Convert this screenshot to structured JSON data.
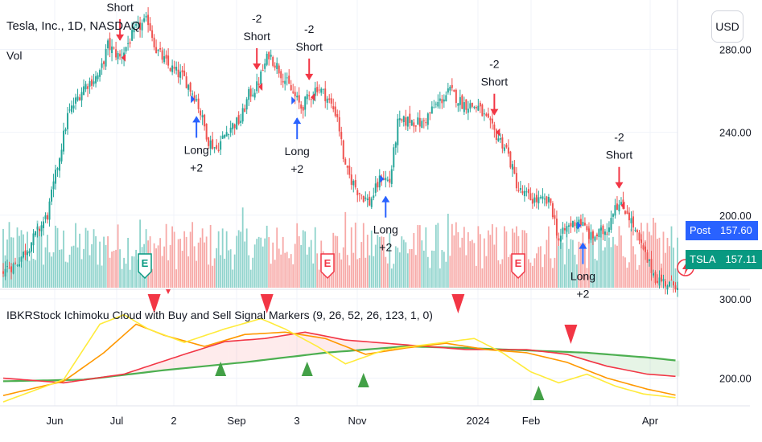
{
  "header": {
    "title": "Tesla, Inc., 1D, NASDAQ",
    "volume_label": "Vol",
    "currency_button": "USD"
  },
  "indicator": {
    "title": "IBKRStock Ichimoku Cloud with Buy and Sell Signal Markers (9, 26, 52, 26, 123, 1, 0)"
  },
  "price_badges": {
    "post": {
      "label": "Post",
      "value": "157.60",
      "color": "#2962ff"
    },
    "last": {
      "label": "TSLA",
      "value": "157.11",
      "color": "#089981"
    }
  },
  "colors": {
    "up": "#26a69a",
    "down": "#ef5350",
    "vol_up": "#8fd3cc",
    "vol_down": "#f7a9a7",
    "short_arrow": "#f23645",
    "long_arrow": "#2962ff",
    "buy_marker": "#43a047",
    "sell_marker": "#f23645"
  },
  "chart_data": [
    {
      "type": "candlestick",
      "title": "Tesla, Inc., 1D, NASDAQ",
      "ylim": [
        165,
        300
      ],
      "y_ticks": [
        "280.00",
        "240.00",
        "200.00"
      ],
      "x_ticks": [
        "Jun",
        "Jul",
        "2",
        "Sep",
        "3",
        "Nov",
        "2024",
        "Feb",
        "Apr"
      ],
      "grid": true,
      "close_keypoints": [
        [
          0,
          174
        ],
        [
          6,
          176
        ],
        [
          12,
          184
        ],
        [
          22,
          200
        ],
        [
          32,
          248
        ],
        [
          40,
          262
        ],
        [
          48,
          268
        ],
        [
          52,
          282
        ],
        [
          58,
          276
        ],
        [
          66,
          290
        ],
        [
          72,
          294
        ],
        [
          76,
          280
        ],
        [
          82,
          272
        ],
        [
          90,
          266
        ],
        [
          96,
          256
        ],
        [
          102,
          236
        ],
        [
          106,
          232
        ],
        [
          112,
          242
        ],
        [
          118,
          246
        ],
        [
          122,
          258
        ],
        [
          126,
          262
        ],
        [
          132,
          278
        ],
        [
          136,
          272
        ],
        [
          142,
          262
        ],
        [
          148,
          252
        ],
        [
          156,
          262
        ],
        [
          160,
          258
        ],
        [
          166,
          248
        ],
        [
          170,
          222
        ],
        [
          176,
          212
        ],
        [
          182,
          206
        ],
        [
          188,
          219
        ],
        [
          192,
          216
        ],
        [
          196,
          244
        ],
        [
          202,
          246
        ],
        [
          208,
          244
        ],
        [
          214,
          252
        ],
        [
          222,
          260
        ],
        [
          228,
          254
        ],
        [
          236,
          252
        ],
        [
          244,
          240
        ],
        [
          250,
          232
        ],
        [
          256,
          212
        ],
        [
          262,
          208
        ],
        [
          266,
          207
        ],
        [
          272,
          206
        ],
        [
          276,
          188
        ],
        [
          280,
          194
        ],
        [
          286,
          198
        ],
        [
          292,
          189
        ],
        [
          300,
          193
        ],
        [
          304,
          206
        ],
        [
          310,
          202
        ],
        [
          316,
          187
        ],
        [
          320,
          178
        ],
        [
          324,
          170
        ],
        [
          328,
          168
        ],
        [
          332,
          166
        ],
        [
          334,
          167
        ]
      ],
      "events": [
        {
          "kind": "short",
          "text": "Short",
          "at": 58
        },
        {
          "kind": "long",
          "text": "Long +2",
          "at": 96
        },
        {
          "kind": "short",
          "text": "-2 Short",
          "at": 126
        },
        {
          "kind": "long",
          "text": "Long +2",
          "at": 146
        },
        {
          "kind": "short",
          "text": "-2 Short",
          "at": 152
        },
        {
          "kind": "long",
          "text": "Long +2",
          "at": 190
        },
        {
          "kind": "short",
          "text": "-2 Short",
          "at": 244
        },
        {
          "kind": "long",
          "text": "Long +2",
          "at": 288
        },
        {
          "kind": "short",
          "text": "-2 Short",
          "at": 306
        }
      ],
      "earnings_markers": [
        "E",
        "E",
        "E"
      ],
      "price_badges": [
        {
          "label": "Post",
          "value": 157.6
        },
        {
          "label": "TSLA",
          "value": 157.11
        }
      ]
    },
    {
      "type": "line",
      "title": "IBKRStock Ichimoku Cloud with Buy and Sell Signal Markers (9, 26, 52, 26, 123, 1, 0)",
      "ylim": [
        165,
        310
      ],
      "y_ticks": [
        "300.00",
        "200.00"
      ],
      "series": [
        {
          "key": "span_b",
          "color": "#4caf50",
          "points": [
            [
              0,
              196
            ],
            [
              40,
              198
            ],
            [
              80,
              210
            ],
            [
              120,
              220
            ],
            [
              160,
              232
            ],
            [
              200,
              240
            ],
            [
              230,
              238
            ],
            [
              260,
              235
            ],
            [
              290,
              232
            ],
            [
              320,
              226
            ],
            [
              335,
              222
            ]
          ]
        },
        {
          "key": "span_a",
          "color": "#f23645",
          "points": [
            [
              0,
              200
            ],
            [
              30,
              194
            ],
            [
              60,
              205
            ],
            [
              90,
              230
            ],
            [
              110,
              246
            ],
            [
              130,
              250
            ],
            [
              150,
              258
            ],
            [
              170,
              248
            ],
            [
              200,
              242
            ],
            [
              230,
              236
            ],
            [
              260,
              236
            ],
            [
              280,
              230
            ],
            [
              300,
              215
            ],
            [
              320,
              205
            ],
            [
              335,
              202
            ]
          ]
        },
        {
          "key": "base",
          "color": "#ff9800",
          "points": [
            [
              0,
              178
            ],
            [
              30,
              196
            ],
            [
              50,
              232
            ],
            [
              66,
              268
            ],
            [
              80,
              254
            ],
            [
              100,
              240
            ],
            [
              120,
              255
            ],
            [
              140,
              258
            ],
            [
              160,
              250
            ],
            [
              180,
              230
            ],
            [
              200,
              238
            ],
            [
              220,
              244
            ],
            [
              240,
              236
            ],
            [
              260,
              232
            ],
            [
              280,
              220
            ],
            [
              300,
              200
            ],
            [
              320,
              186
            ],
            [
              335,
              178
            ]
          ]
        },
        {
          "key": "conversion",
          "color": "#ffeb3b",
          "points": [
            [
              0,
              170
            ],
            [
              30,
              198
            ],
            [
              48,
              268
            ],
            [
              60,
              280
            ],
            [
              72,
              262
            ],
            [
              90,
              245
            ],
            [
              110,
              262
            ],
            [
              128,
              275
            ],
            [
              140,
              262
            ],
            [
              156,
              240
            ],
            [
              170,
              218
            ],
            [
              190,
              236
            ],
            [
              216,
              244
            ],
            [
              234,
              250
            ],
            [
              248,
              232
            ],
            [
              262,
              208
            ],
            [
              276,
              194
            ],
            [
              290,
              205
            ],
            [
              304,
              190
            ],
            [
              318,
              180
            ],
            [
              335,
              175
            ]
          ]
        }
      ],
      "buy_markers": [
        108,
        151,
        179,
        266
      ],
      "sell_markers": [
        75,
        131,
        226,
        282
      ]
    }
  ]
}
